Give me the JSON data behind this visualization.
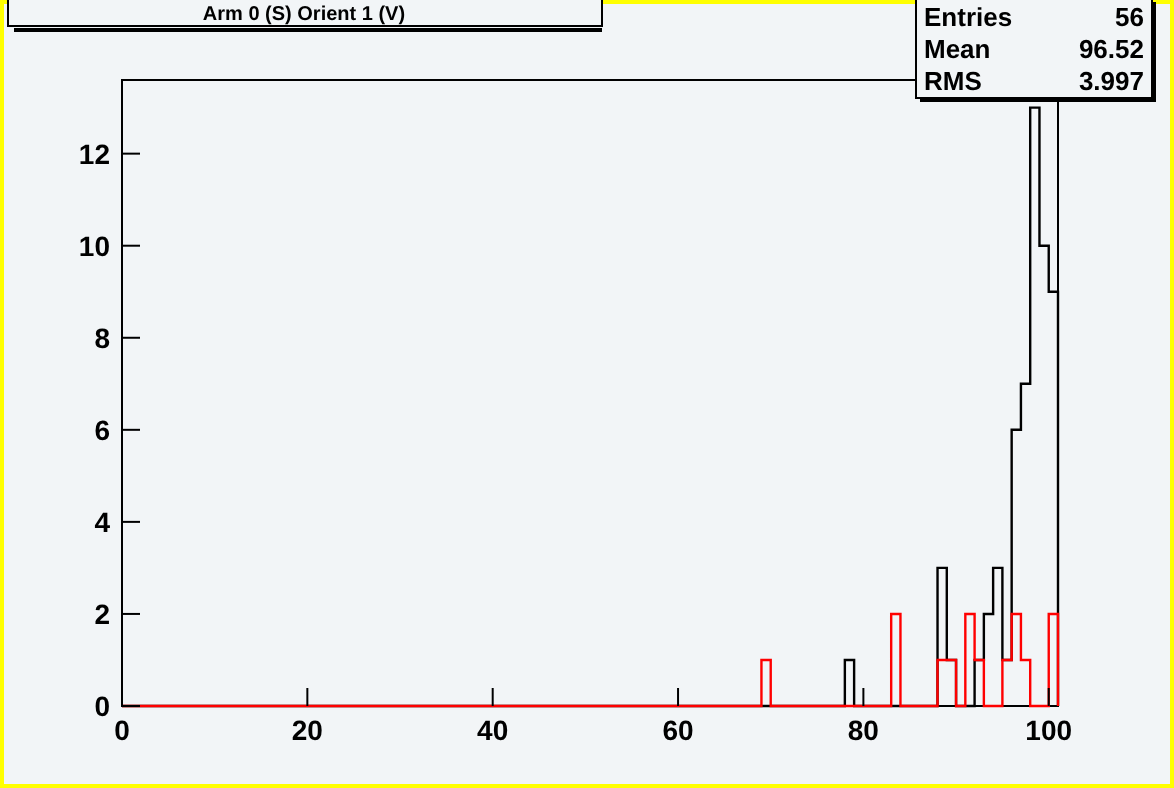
{
  "chart_data": {
    "type": "histogram",
    "title": "Arm 0 (S) Orient 1 (V)",
    "annotations": [
      "Entries 56",
      "Mean 96.52",
      "RMS 3.997"
    ],
    "bins": [
      0,
      1,
      2,
      3,
      4,
      5,
      6,
      7,
      8,
      9,
      10,
      11,
      12,
      13,
      14,
      15,
      16,
      17,
      18,
      19,
      20,
      21,
      22,
      23,
      24,
      25,
      26,
      27,
      28,
      29,
      30,
      31,
      32,
      33,
      34,
      35,
      36,
      37,
      38,
      39,
      40,
      41,
      42,
      43,
      44,
      45,
      46,
      47,
      48,
      49,
      50,
      51,
      52,
      53,
      54,
      55,
      56,
      57,
      58,
      59,
      60,
      61,
      62,
      63,
      64,
      65,
      66,
      67,
      68,
      69,
      70,
      71,
      72,
      73,
      74,
      75,
      76,
      77,
      78,
      79,
      80,
      81,
      82,
      83,
      84,
      85,
      86,
      87,
      88,
      89,
      90,
      91,
      92,
      93,
      94,
      95,
      96,
      97,
      98,
      99,
      100,
      101
    ],
    "series": [
      {
        "color": "#000000",
        "values": [
          0,
          0,
          0,
          0,
          0,
          0,
          0,
          0,
          0,
          0,
          0,
          0,
          0,
          0,
          0,
          0,
          0,
          0,
          0,
          0,
          0,
          0,
          0,
          0,
          0,
          0,
          0,
          0,
          0,
          0,
          0,
          0,
          0,
          0,
          0,
          0,
          0,
          0,
          0,
          0,
          0,
          0,
          0,
          0,
          0,
          0,
          0,
          0,
          0,
          0,
          0,
          0,
          0,
          0,
          0,
          0,
          0,
          0,
          0,
          0,
          0,
          0,
          0,
          0,
          0,
          0,
          0,
          0,
          0,
          0,
          0,
          0,
          0,
          0,
          0,
          0,
          0,
          0,
          1,
          0,
          0,
          0,
          0,
          0,
          0,
          0,
          0,
          0,
          3,
          1,
          0,
          0,
          1,
          2,
          3,
          1,
          6,
          7,
          13,
          10,
          9
        ]
      },
      {
        "color": "#ff0000",
        "values": [
          0,
          0,
          0,
          0,
          0,
          0,
          0,
          0,
          0,
          0,
          0,
          0,
          0,
          0,
          0,
          0,
          0,
          0,
          0,
          0,
          0,
          0,
          0,
          0,
          0,
          0,
          0,
          0,
          0,
          0,
          0,
          0,
          0,
          0,
          0,
          0,
          0,
          0,
          0,
          0,
          0,
          0,
          0,
          0,
          0,
          0,
          0,
          0,
          0,
          0,
          0,
          0,
          0,
          0,
          0,
          0,
          0,
          0,
          0,
          0,
          0,
          0,
          0,
          0,
          0,
          0,
          0,
          0,
          0,
          1,
          0,
          0,
          0,
          0,
          0,
          0,
          0,
          0,
          0,
          0,
          0,
          0,
          0,
          2,
          0,
          0,
          0,
          0,
          1,
          1,
          0,
          2,
          1,
          0,
          0,
          1,
          2,
          1,
          0,
          0,
          2
        ]
      }
    ],
    "xlim": [
      0,
      101
    ],
    "xticks": [
      0,
      20,
      40,
      60,
      80,
      100
    ],
    "ylim": [
      0,
      13.6
    ],
    "yticks": [
      0,
      2,
      4,
      6,
      8,
      10,
      12
    ]
  }
}
